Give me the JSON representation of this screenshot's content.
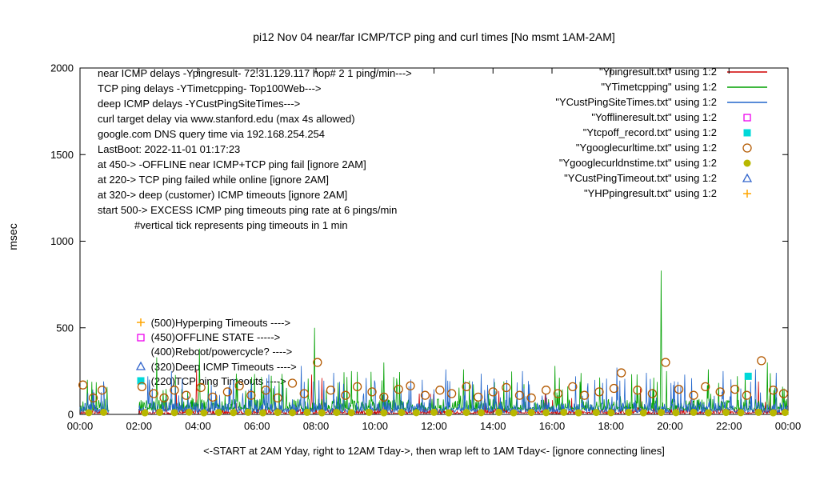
{
  "chart_data": {
    "type": "line",
    "title": "pi12 Nov 04 near/far ICMP/TCP ping and curl times [No msmt 1AM-2AM]",
    "ylabel": "msec",
    "xlabel": "<-START at 2AM Yday, right to 12AM Tday->, then wrap left to 1AM Tday<- [ignore connecting lines]",
    "ylim": [
      0,
      2000
    ],
    "yticks": [
      0,
      500,
      1000,
      1500,
      2000
    ],
    "xlim_hours": [
      0,
      24
    ],
    "xticks": [
      {
        "h": 0,
        "label": "00:00"
      },
      {
        "h": 2,
        "label": "02:00"
      },
      {
        "h": 4,
        "label": "04:00"
      },
      {
        "h": 6,
        "label": "06:00"
      },
      {
        "h": 8,
        "label": "08:00"
      },
      {
        "h": 10,
        "label": "10:00"
      },
      {
        "h": 12,
        "label": "12:00"
      },
      {
        "h": 14,
        "label": "14:00"
      },
      {
        "h": 16,
        "label": "16:00"
      },
      {
        "h": 18,
        "label": "18:00"
      },
      {
        "h": 20,
        "label": "20:00"
      },
      {
        "h": 22,
        "label": "22:00"
      },
      {
        "h": 24,
        "label": "00:00"
      }
    ],
    "measurement_gap_hours": [
      1,
      2
    ],
    "grid": false,
    "legend_position": "top-right",
    "annotations_text": [
      "near ICMP delays -Ypingresult- 72.31.129.117 hop# 2 1 ping/min--->",
      "TCP ping delays -YTimetcpping- Top100Web--->",
      "deep ICMP delays -YCustPingSiteTimes--->",
      "curl target delay via www.stanford.edu (max 4s allowed)",
      "google.com DNS query time via 192.168.254.254",
      "LastBoot: 2022-11-01 01:17:23",
      "at 450-> -OFFLINE near ICMP+TCP ping fail [ignore 2AM]",
      "at 220-> TCP ping failed while online [ignore 2AM]",
      "at 320-> deep (customer) ICMP timeouts [ignore 2AM]",
      "start 500-> EXCESS ICMP ping timeouts ping rate at 6 pings/min",
      "#vertical tick represents ping timeouts in 1 min"
    ],
    "marker_annotations": [
      {
        "marker": "plus",
        "color": "#ffa500",
        "x_hour": 2.05,
        "y": 530,
        "label": "(500)Hyperping Timeouts ---->"
      },
      {
        "marker": "open-square",
        "color": "#ee00ee",
        "x_hour": 2.05,
        "y": 445,
        "label": "(450)OFFLINE STATE ----->"
      },
      {
        "marker": "none",
        "color": "#000000",
        "x_hour": 2.05,
        "y": 362,
        "label": "(400)Reboot/powercycle? ---->"
      },
      {
        "marker": "open-triangle",
        "color": "#3366cc",
        "x_hour": 2.05,
        "y": 276,
        "label": "(320)Deep ICMP Timeouts ---->"
      },
      {
        "marker": "filled-square",
        "color": "#00d8d8",
        "x_hour": 2.05,
        "y": 192,
        "label": "(220)TCP ping Timeouts ---->"
      }
    ],
    "legend": [
      {
        "label": "\"Ypingresult.txt\" using 1:2",
        "type": "line",
        "color": "#d00000"
      },
      {
        "label": "\"YTimetcpping\" using 1:2",
        "type": "line",
        "color": "#00a000"
      },
      {
        "label": "\"YCustPingSiteTimes.txt\" using 1:2",
        "type": "line",
        "color": "#2266cc"
      },
      {
        "label": "\"Yofflineresult.txt\" using 1:2",
        "type": "open-square",
        "color": "#ee00ee"
      },
      {
        "label": "\"Ytcpoff_record.txt\" using 1:2",
        "type": "filled-square",
        "color": "#00d8d8"
      },
      {
        "label": "\"Ygooglecurltime.txt\" using 1:2",
        "type": "open-circle",
        "color": "#b35900"
      },
      {
        "label": "\"Ygooglecurldnstime.txt\" using 1:2",
        "type": "filled-circle",
        "color": "#b8b800"
      },
      {
        "label": "\"YCustPingTimeout.txt\" using 1:2",
        "type": "open-triangle",
        "color": "#3366cc"
      },
      {
        "label": "\"YHPpingresult.txt\" using 1:2",
        "type": "plus",
        "color": "#ffa500"
      }
    ],
    "line_series": [
      {
        "name": "Ypingresult",
        "color": "#d00000",
        "seed": 11,
        "base": 3,
        "jitter": 30,
        "spike_prob": 0.015,
        "spike_max": 100,
        "events": [
          [
            3.95,
            255
          ],
          [
            7.85,
            230
          ],
          [
            8.2,
            210
          ],
          [
            11.5,
            120
          ],
          [
            14.2,
            135
          ],
          [
            19.0,
            150
          ],
          [
            23.0,
            190
          ]
        ]
      },
      {
        "name": "YTimetcpping",
        "color": "#00a000",
        "seed": 22,
        "base": 20,
        "jitter": 70,
        "spike_prob": 0.06,
        "spike_max": 160,
        "events": [
          [
            0.25,
            200
          ],
          [
            2.6,
            330
          ],
          [
            4.05,
            380
          ],
          [
            7.95,
            500
          ],
          [
            10.3,
            300
          ],
          [
            13.0,
            260
          ],
          [
            16.1,
            280
          ],
          [
            19.7,
            830
          ],
          [
            21.3,
            260
          ],
          [
            23.3,
            300
          ]
        ]
      },
      {
        "name": "YCustPingSiteTimes",
        "color": "#2266cc",
        "seed": 33,
        "base": 10,
        "jitter": 60,
        "spike_prob": 0.09,
        "spike_max": 140,
        "events": [
          [
            2.3,
            220
          ],
          [
            3.1,
            250
          ],
          [
            5.2,
            205
          ],
          [
            6.4,
            230
          ],
          [
            7.5,
            280
          ],
          [
            8.6,
            240
          ],
          [
            9.7,
            210
          ],
          [
            12.4,
            260
          ],
          [
            13.6,
            235
          ],
          [
            15.0,
            250
          ],
          [
            16.8,
            220
          ],
          [
            18.2,
            270
          ],
          [
            19.2,
            240
          ],
          [
            20.5,
            230
          ],
          [
            21.8,
            250
          ],
          [
            22.9,
            260
          ],
          [
            23.6,
            240
          ]
        ]
      }
    ],
    "point_series": [
      {
        "name": "Ygooglecurltime",
        "marker": "open-circle",
        "color": "#b35900",
        "points": [
          [
            0.1,
            170
          ],
          [
            0.45,
            95
          ],
          [
            0.75,
            140
          ],
          [
            2.1,
            160
          ],
          [
            2.5,
            120
          ],
          [
            2.85,
            95
          ],
          [
            3.2,
            140
          ],
          [
            3.6,
            110
          ],
          [
            4.1,
            155
          ],
          [
            4.5,
            100
          ],
          [
            5.0,
            130
          ],
          [
            5.4,
            165
          ],
          [
            5.8,
            110
          ],
          [
            6.3,
            140
          ],
          [
            6.7,
            95
          ],
          [
            7.2,
            180
          ],
          [
            7.6,
            120
          ],
          [
            8.05,
            300
          ],
          [
            8.5,
            140
          ],
          [
            9.0,
            110
          ],
          [
            9.4,
            160
          ],
          [
            9.9,
            130
          ],
          [
            10.3,
            100
          ],
          [
            10.8,
            145
          ],
          [
            11.2,
            165
          ],
          [
            11.7,
            110
          ],
          [
            12.2,
            140
          ],
          [
            12.6,
            120
          ],
          [
            13.1,
            160
          ],
          [
            13.5,
            100
          ],
          [
            14.0,
            130
          ],
          [
            14.45,
            155
          ],
          [
            14.9,
            110
          ],
          [
            15.3,
            95
          ],
          [
            15.8,
            140
          ],
          [
            16.2,
            120
          ],
          [
            16.7,
            160
          ],
          [
            17.1,
            110
          ],
          [
            17.6,
            130
          ],
          [
            18.1,
            150
          ],
          [
            18.35,
            240
          ],
          [
            18.9,
            140
          ],
          [
            19.4,
            120
          ],
          [
            19.85,
            300
          ],
          [
            20.3,
            145
          ],
          [
            20.8,
            110
          ],
          [
            21.2,
            160
          ],
          [
            21.7,
            130
          ],
          [
            22.2,
            145
          ],
          [
            22.6,
            110
          ],
          [
            23.1,
            310
          ],
          [
            23.5,
            140
          ],
          [
            23.85,
            120
          ]
        ]
      },
      {
        "name": "Ygooglecurldnstime",
        "marker": "filled-circle",
        "color": "#b8b800",
        "points": [
          [
            0.3,
            10
          ],
          [
            0.8,
            12
          ],
          [
            2.2,
            9
          ],
          [
            2.7,
            12
          ],
          [
            3.2,
            10
          ],
          [
            3.7,
            13
          ],
          [
            4.2,
            9
          ],
          [
            4.7,
            11
          ],
          [
            5.2,
            10
          ],
          [
            5.7,
            12
          ],
          [
            6.2,
            9
          ],
          [
            6.7,
            11
          ],
          [
            7.2,
            10
          ],
          [
            7.7,
            12
          ],
          [
            8.2,
            9
          ],
          [
            8.7,
            11
          ],
          [
            9.2,
            10
          ],
          [
            9.8,
            12
          ],
          [
            10.3,
            9
          ],
          [
            10.9,
            11
          ],
          [
            11.4,
            10
          ],
          [
            12.0,
            12
          ],
          [
            12.5,
            9
          ],
          [
            13.1,
            11
          ],
          [
            13.6,
            10
          ],
          [
            14.2,
            12
          ],
          [
            14.7,
            9
          ],
          [
            15.3,
            11
          ],
          [
            15.8,
            10
          ],
          [
            16.4,
            12
          ],
          [
            16.9,
            9
          ],
          [
            17.5,
            11
          ],
          [
            18.0,
            10
          ],
          [
            18.6,
            12
          ],
          [
            19.1,
            9
          ],
          [
            19.7,
            11
          ],
          [
            20.2,
            10
          ],
          [
            20.8,
            12
          ],
          [
            21.3,
            9
          ],
          [
            21.9,
            11
          ],
          [
            22.4,
            10
          ],
          [
            23.0,
            12
          ],
          [
            23.5,
            9
          ],
          [
            23.9,
            11
          ]
        ]
      },
      {
        "name": "Ytcpoff_record",
        "marker": "filled-square",
        "color": "#00d8d8",
        "points": [
          [
            22.65,
            220
          ]
        ]
      },
      {
        "name": "Yofflineresult",
        "marker": "open-square",
        "color": "#ee00ee",
        "points": []
      },
      {
        "name": "YCustPingTimeout",
        "marker": "open-triangle",
        "color": "#3366cc",
        "points": []
      },
      {
        "name": "YHPpingresult",
        "marker": "plus",
        "color": "#ffa500",
        "points": []
      }
    ]
  }
}
